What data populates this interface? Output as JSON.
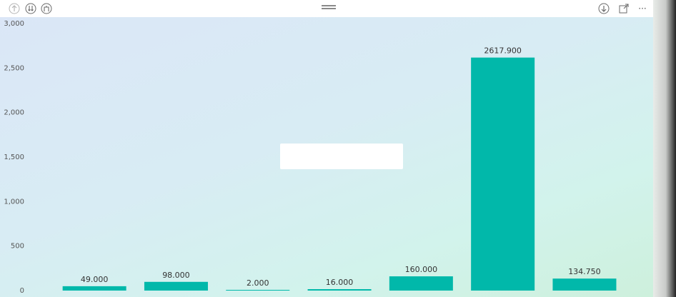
{
  "toolbar": {
    "left_icons": [
      "arrow-up-icon",
      "drill-down-double-icon",
      "expand-hierarchy-icon"
    ],
    "right_icons": [
      "drill-down-icon",
      "focus-mode-icon",
      "more-options-icon"
    ],
    "more_glyph": "···"
  },
  "chart_data": {
    "type": "bar",
    "categories": [
      "",
      "",
      "",
      "",
      "",
      "",
      ""
    ],
    "values": [
      49.0,
      98.0,
      2.0,
      16.0,
      160.0,
      2617.9,
      134.75
    ],
    "data_labels": [
      "49.000",
      "98.000",
      "2.000",
      "16.000",
      "160.000",
      "2617.900",
      "134.750"
    ],
    "y_ticks": [
      0,
      500,
      1000,
      1500,
      2000,
      2500,
      3000
    ],
    "y_tick_labels": [
      "0",
      "500",
      "1,000",
      "1,500",
      "2,000",
      "2,500",
      "3,000"
    ],
    "ylim": [
      0,
      3000
    ],
    "bar_color": "#01B8AA",
    "grid": false,
    "title": "",
    "xlabel": "",
    "ylabel": ""
  }
}
